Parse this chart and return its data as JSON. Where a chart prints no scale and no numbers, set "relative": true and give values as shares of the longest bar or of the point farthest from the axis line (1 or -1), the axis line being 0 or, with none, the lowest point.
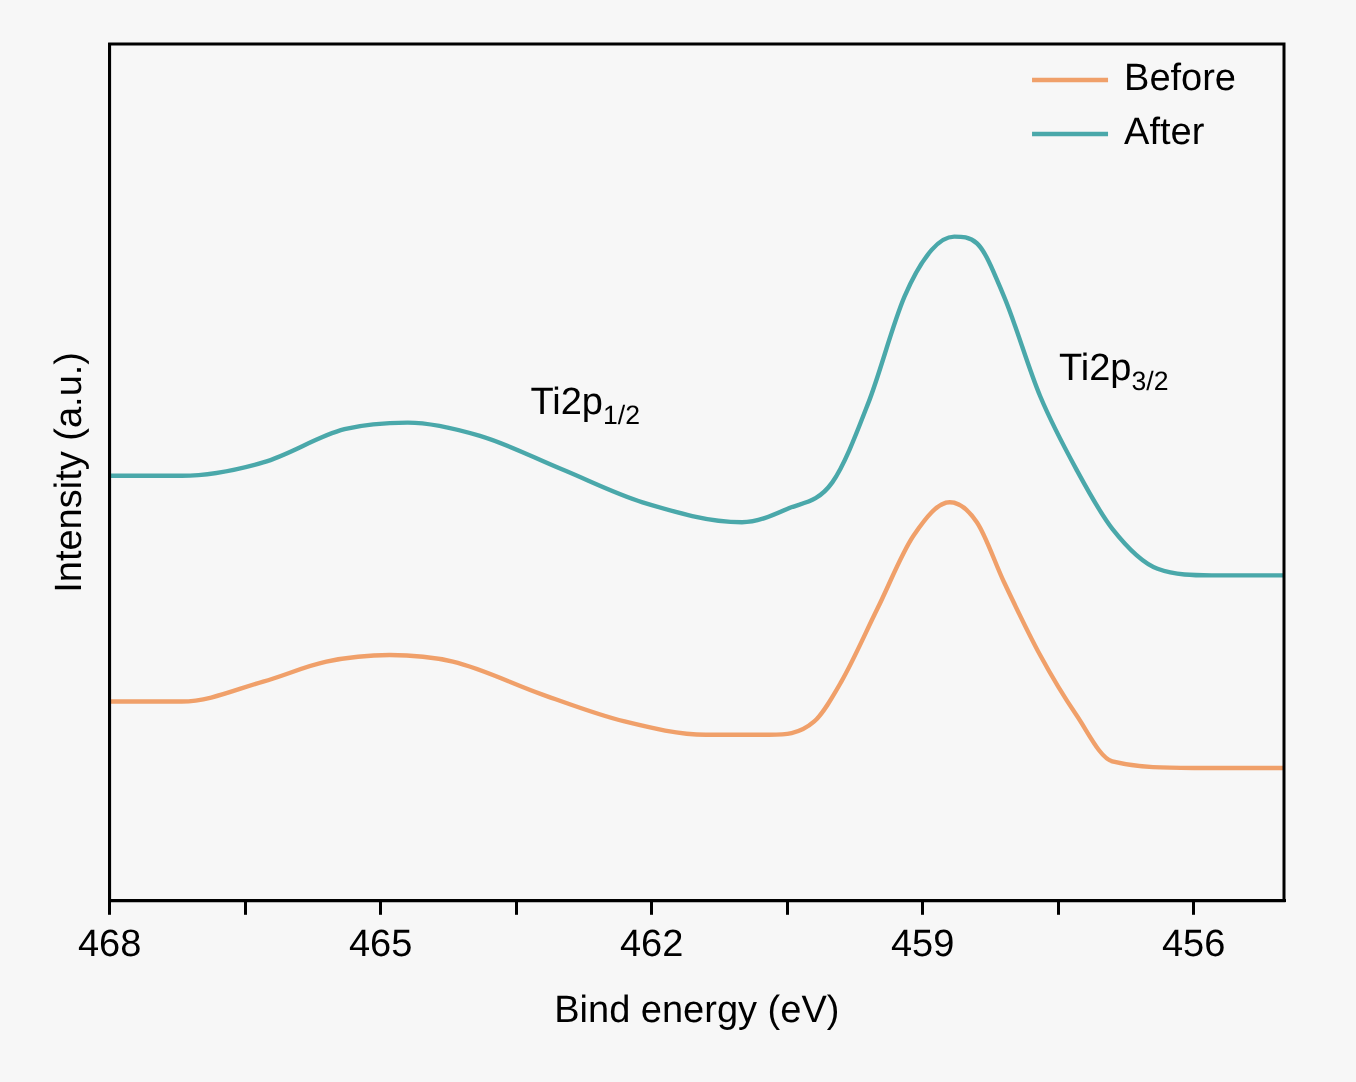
{
  "chart_data": {
    "type": "line",
    "xlabel": "Bind energy (eV)",
    "ylabel": "Intensity (a.u.)",
    "relative": true,
    "xlim": [
      468,
      455
    ],
    "xticks": [
      468,
      {
        "value": 466.5,
        "label": null
      },
      465,
      {
        "value": 463.5,
        "label": null
      },
      462,
      {
        "value": 460.5,
        "label": null
      },
      459,
      {
        "value": 457.5,
        "label": null
      },
      456
    ],
    "legend": "top right",
    "marker": "none",
    "line_style": "solid",
    "annotations": [
      "Ti2p$_{1/2}$",
      "Ti2p$_{3/2}$"
    ],
    "series": [
      {
        "name": "Before",
        "color": "#f0a06a",
        "x": [
          468,
          467.2,
          466.3,
          465.6,
          464.9,
          464.2,
          463.2,
          462.3,
          461.4,
          460.7,
          460.2,
          459.9,
          459.5,
          459.1,
          458.7,
          458.4,
          458.1,
          457.7,
          457.3,
          456.9,
          456,
          455
        ],
        "values": [
          0.3,
          0.3,
          0.33,
          0.36,
          0.37,
          0.36,
          0.31,
          0.27,
          0.25,
          0.25,
          0.27,
          0.33,
          0.44,
          0.55,
          0.6,
          0.57,
          0.48,
          0.37,
          0.28,
          0.21,
          0.2,
          0.2
        ]
      },
      {
        "name": "After",
        "color": "#4aa8aa",
        "x": [
          468,
          467.2,
          466.3,
          465.4,
          464.7,
          463.9,
          463,
          462.1,
          461,
          460.5,
          460,
          459.6,
          459.2,
          458.9,
          458.65,
          458.4,
          458.1,
          457.7,
          457.3,
          456.9,
          456.4,
          455.8,
          455
        ],
        "values": [
          0.64,
          0.64,
          0.66,
          0.71,
          0.72,
          0.7,
          0.65,
          0.6,
          0.57,
          0.59,
          0.63,
          0.75,
          0.91,
          0.98,
          1,
          0.99,
          0.91,
          0.76,
          0.65,
          0.56,
          0.5,
          0.49,
          0.49
        ]
      }
    ]
  }
}
